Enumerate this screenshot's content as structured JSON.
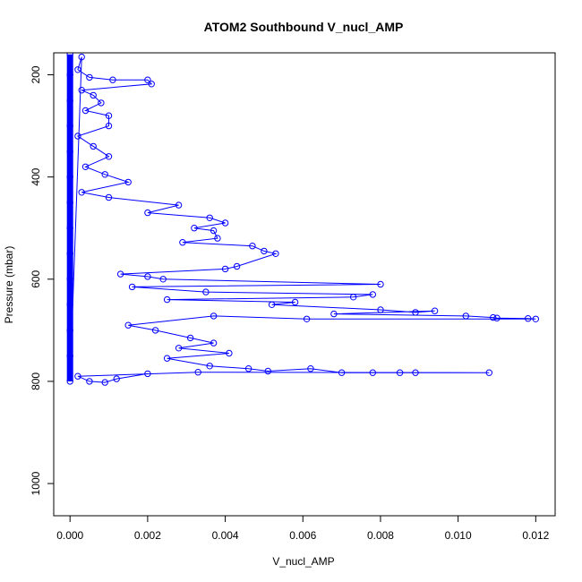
{
  "chart_data": {
    "type": "scatter",
    "title": "ATOM2 Southbound V_nucl_AMP",
    "xlabel": "V_nucl_AMP",
    "ylabel": "Pressure (mbar)",
    "xlim": [
      -0.00042,
      0.0125
    ],
    "ylim": [
      1063,
      157
    ],
    "y_axis_reversed": true,
    "x_ticks": [
      "0.000",
      "0.002",
      "0.004",
      "0.006",
      "0.008",
      "0.010",
      "0.012"
    ],
    "y_ticks": [
      "200",
      "400",
      "600",
      "800",
      "1000"
    ],
    "grid": false,
    "legend": "none",
    "marker": "open-circle",
    "connected_by_lines": true,
    "color": "#0000ff",
    "series": [
      {
        "values": [
          {
            "x": 0.0,
            "y": 160
          },
          {
            "x": 0.0,
            "y": 200
          },
          {
            "x": 0.0,
            "y": 250
          },
          {
            "x": 0.0,
            "y": 300
          },
          {
            "x": 0.0,
            "y": 350
          },
          {
            "x": 0.0,
            "y": 400
          },
          {
            "x": 0.0,
            "y": 450
          },
          {
            "x": 0.0,
            "y": 500
          },
          {
            "x": 0.0,
            "y": 550
          },
          {
            "x": 0.0,
            "y": 600
          },
          {
            "x": 0.0,
            "y": 650
          },
          {
            "x": 0.0,
            "y": 700
          },
          {
            "x": 0.0,
            "y": 750
          },
          {
            "x": 0.0,
            "y": 800
          },
          {
            "x": 0.0003,
            "y": 165
          },
          {
            "x": 0.0002,
            "y": 190
          },
          {
            "x": 0.0005,
            "y": 205
          },
          {
            "x": 0.0011,
            "y": 210
          },
          {
            "x": 0.002,
            "y": 210
          },
          {
            "x": 0.0021,
            "y": 218
          },
          {
            "x": 0.0003,
            "y": 230
          },
          {
            "x": 0.0006,
            "y": 240
          },
          {
            "x": 0.0008,
            "y": 255
          },
          {
            "x": 0.0004,
            "y": 270
          },
          {
            "x": 0.001,
            "y": 280
          },
          {
            "x": 0.001,
            "y": 300
          },
          {
            "x": 0.0002,
            "y": 320
          },
          {
            "x": 0.0006,
            "y": 340
          },
          {
            "x": 0.001,
            "y": 360
          },
          {
            "x": 0.0004,
            "y": 380
          },
          {
            "x": 0.0009,
            "y": 395
          },
          {
            "x": 0.0015,
            "y": 410
          },
          {
            "x": 0.0003,
            "y": 430
          },
          {
            "x": 0.001,
            "y": 440
          },
          {
            "x": 0.0028,
            "y": 455
          },
          {
            "x": 0.002,
            "y": 470
          },
          {
            "x": 0.0036,
            "y": 480
          },
          {
            "x": 0.004,
            "y": 490
          },
          {
            "x": 0.0032,
            "y": 500
          },
          {
            "x": 0.0037,
            "y": 505
          },
          {
            "x": 0.0038,
            "y": 520
          },
          {
            "x": 0.0029,
            "y": 528
          },
          {
            "x": 0.0047,
            "y": 535
          },
          {
            "x": 0.005,
            "y": 545
          },
          {
            "x": 0.0053,
            "y": 550
          },
          {
            "x": 0.0043,
            "y": 575
          },
          {
            "x": 0.004,
            "y": 580
          },
          {
            "x": 0.0013,
            "y": 590
          },
          {
            "x": 0.002,
            "y": 595
          },
          {
            "x": 0.0024,
            "y": 600
          },
          {
            "x": 0.008,
            "y": 610
          },
          {
            "x": 0.0016,
            "y": 615
          },
          {
            "x": 0.0035,
            "y": 625
          },
          {
            "x": 0.0078,
            "y": 630
          },
          {
            "x": 0.0073,
            "y": 635
          },
          {
            "x": 0.0025,
            "y": 640
          },
          {
            "x": 0.0058,
            "y": 645
          },
          {
            "x": 0.0052,
            "y": 650
          },
          {
            "x": 0.008,
            "y": 660
          },
          {
            "x": 0.0089,
            "y": 665
          },
          {
            "x": 0.0094,
            "y": 662
          },
          {
            "x": 0.0068,
            "y": 668
          },
          {
            "x": 0.0102,
            "y": 672
          },
          {
            "x": 0.0109,
            "y": 675
          },
          {
            "x": 0.011,
            "y": 676
          },
          {
            "x": 0.0118,
            "y": 677
          },
          {
            "x": 0.012,
            "y": 678
          },
          {
            "x": 0.0061,
            "y": 678
          },
          {
            "x": 0.0037,
            "y": 672
          },
          {
            "x": 0.0015,
            "y": 690
          },
          {
            "x": 0.0022,
            "y": 700
          },
          {
            "x": 0.0031,
            "y": 715
          },
          {
            "x": 0.0037,
            "y": 725
          },
          {
            "x": 0.0028,
            "y": 735
          },
          {
            "x": 0.0041,
            "y": 745
          },
          {
            "x": 0.0025,
            "y": 755
          },
          {
            "x": 0.0036,
            "y": 770
          },
          {
            "x": 0.0046,
            "y": 775
          },
          {
            "x": 0.0051,
            "y": 780
          },
          {
            "x": 0.0062,
            "y": 775
          },
          {
            "x": 0.007,
            "y": 783
          },
          {
            "x": 0.0078,
            "y": 783
          },
          {
            "x": 0.0085,
            "y": 783
          },
          {
            "x": 0.0089,
            "y": 783
          },
          {
            "x": 0.0108,
            "y": 783
          },
          {
            "x": 0.0033,
            "y": 782
          },
          {
            "x": 0.0002,
            "y": 790
          },
          {
            "x": 0.0005,
            "y": 800
          },
          {
            "x": 0.0009,
            "y": 802
          },
          {
            "x": 0.0012,
            "y": 795
          },
          {
            "x": 0.002,
            "y": 785
          }
        ]
      }
    ]
  }
}
